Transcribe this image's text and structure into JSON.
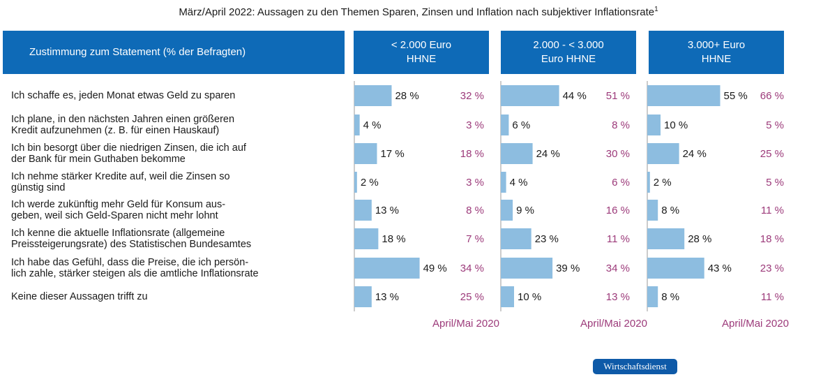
{
  "title": "März/April 2022: Aussagen zu den Themen Sparen, Zinsen und Inflation nach subjektiver Inflationsrate",
  "title_footnote": "1",
  "header": {
    "statement_label": "Zustimmung zum Statement (% der Befragten)",
    "groups": [
      {
        "line1": "< 2.000 Euro",
        "line2": "HHNE"
      },
      {
        "line1": "2.000 - < 3.000",
        "line2": "Euro HHNE"
      },
      {
        "line1": "3.000+ Euro",
        "line2": "HHNE"
      }
    ]
  },
  "statements": [
    {
      "line1": "Ich schaffe es, jeden Monat etwas Geld zu sparen",
      "line2": ""
    },
    {
      "line1": "Ich plane, in den nächsten Jahren einen größeren",
      "line2": "Kredit aufzunehmen (z. B. für einen Hauskauf)"
    },
    {
      "line1": "Ich bin besorgt über die niedrigen Zinsen, die ich auf",
      "line2": "der Bank für mein Guthaben bekomme"
    },
    {
      "line1": "Ich nehme stärker Kredite auf, weil die Zinsen so",
      "line2": "günstig sind"
    },
    {
      "line1": "Ich werde zukünftig mehr Geld für Konsum aus-",
      "line2": "geben, weil sich Geld-Sparen nicht mehr lohnt"
    },
    {
      "line1": "Ich kenne die aktuelle Inflationsrate (allgemeine",
      "line2": "Preissteigerungsrate) des Statistischen Bundesamtes"
    },
    {
      "line1": "Ich habe das Gefühl, dass die Preise, die ich persön-",
      "line2": "lich zahle, stärker steigen als die amtliche Inflationsrate"
    },
    {
      "line1": "Keine dieser Aussagen trifft zu",
      "line2": ""
    }
  ],
  "logo_text": "Wirtschaftsdienst",
  "chart_data": {
    "type": "bar",
    "unit": "%",
    "bar_color": "#8dbde0",
    "comparison_color": "#9c3a7a",
    "comparison_label": "April/Mai 2020",
    "groups": [
      {
        "name": "< 2.000 Euro HHNE",
        "values": [
          28,
          4,
          17,
          2,
          13,
          18,
          49,
          13
        ],
        "comparison_values": [
          32,
          3,
          18,
          3,
          8,
          7,
          34,
          25
        ]
      },
      {
        "name": "2.000 - < 3.000 Euro HHNE",
        "values": [
          44,
          6,
          24,
          4,
          9,
          23,
          39,
          10
        ],
        "comparison_values": [
          51,
          8,
          30,
          6,
          16,
          11,
          34,
          13
        ]
      },
      {
        "name": "3.000+ Euro HHNE",
        "values": [
          55,
          10,
          24,
          2,
          8,
          28,
          43,
          8
        ],
        "comparison_values": [
          66,
          5,
          25,
          5,
          11,
          18,
          23,
          11
        ]
      }
    ]
  }
}
